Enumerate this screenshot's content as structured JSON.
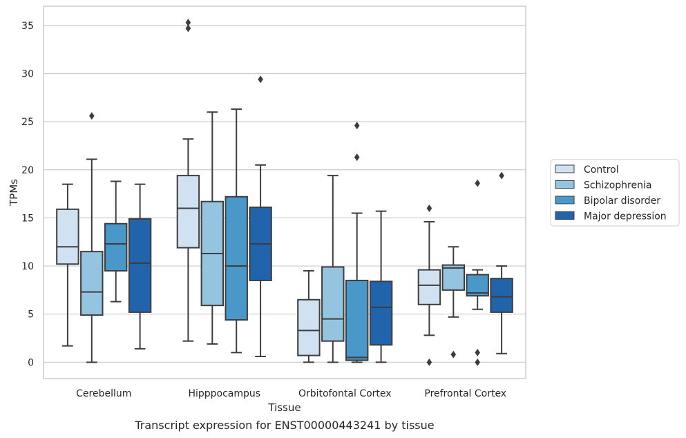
{
  "caption": "Transcript expression for ENST00000443241 by tissue",
  "colors": {
    "Control": "#d0e1f2",
    "Schizophrenia": "#94c4df",
    "Bipolar disorder": "#4a98c9",
    "Major depression": "#2164ab",
    "box_edge": "#3d3d3d",
    "grid": "#cccccc",
    "axes_edge": "#cccccc"
  },
  "chart_data": {
    "type": "box",
    "xlabel": "Tissue",
    "ylabel": "TPMs",
    "ylim": [
      -1.7,
      37.0
    ],
    "yticks": [
      0,
      5,
      10,
      15,
      20,
      25,
      30,
      35
    ],
    "grid": "horizontal",
    "legend_position": "right",
    "categories": [
      "Cerebellum",
      "Hipppocampus",
      "Orbitofontal Cortex",
      "Prefrontal Cortex"
    ],
    "series": [
      {
        "name": "Control",
        "boxes": [
          {
            "whisker_low": 1.7,
            "q1": 10.2,
            "median": 12.0,
            "q3": 15.9,
            "whisker_high": 18.5,
            "outliers": []
          },
          {
            "whisker_low": 2.2,
            "q1": 11.9,
            "median": 16.0,
            "q3": 19.4,
            "whisker_high": 23.2,
            "outliers": [
              34.7,
              35.3
            ]
          },
          {
            "whisker_low": 0.0,
            "q1": 0.7,
            "median": 3.3,
            "q3": 6.5,
            "whisker_high": 9.5,
            "outliers": []
          },
          {
            "whisker_low": 2.8,
            "q1": 6.0,
            "median": 8.0,
            "q3": 9.6,
            "whisker_high": 14.6,
            "outliers": [
              16.0,
              0.0
            ]
          }
        ]
      },
      {
        "name": "Schizophrenia",
        "boxes": [
          {
            "whisker_low": 0.0,
            "q1": 4.9,
            "median": 7.3,
            "q3": 11.5,
            "whisker_high": 21.1,
            "outliers": [
              25.6
            ]
          },
          {
            "whisker_low": 1.9,
            "q1": 5.9,
            "median": 11.3,
            "q3": 16.7,
            "whisker_high": 26.0,
            "outliers": []
          },
          {
            "whisker_low": 0.0,
            "q1": 2.2,
            "median": 4.5,
            "q3": 9.9,
            "whisker_high": 19.4,
            "outliers": []
          },
          {
            "whisker_low": 4.7,
            "q1": 7.5,
            "median": 9.8,
            "q3": 10.1,
            "whisker_high": 12.0,
            "outliers": [
              0.8
            ]
          }
        ]
      },
      {
        "name": "Bipolar disorder",
        "boxes": [
          {
            "whisker_low": 6.3,
            "q1": 9.5,
            "median": 12.3,
            "q3": 14.4,
            "whisker_high": 18.8,
            "outliers": []
          },
          {
            "whisker_low": 1.0,
            "q1": 4.4,
            "median": 10.0,
            "q3": 17.2,
            "whisker_high": 26.3,
            "outliers": []
          },
          {
            "whisker_low": 0.0,
            "q1": 0.2,
            "median": 0.5,
            "q3": 8.5,
            "whisker_high": 15.5,
            "outliers": [
              21.3,
              24.6
            ]
          },
          {
            "whisker_low": 5.5,
            "q1": 6.9,
            "median": 7.2,
            "q3": 9.1,
            "whisker_high": 9.6,
            "outliers": [
              18.6,
              1.0,
              0.0
            ]
          }
        ]
      },
      {
        "name": "Major depression",
        "boxes": [
          {
            "whisker_low": 1.4,
            "q1": 5.2,
            "median": 10.3,
            "q3": 14.9,
            "whisker_high": 18.5,
            "outliers": []
          },
          {
            "whisker_low": 0.6,
            "q1": 8.5,
            "median": 12.3,
            "q3": 16.1,
            "whisker_high": 20.5,
            "outliers": [
              29.4
            ]
          },
          {
            "whisker_low": 0.0,
            "q1": 1.8,
            "median": 5.7,
            "q3": 8.4,
            "whisker_high": 15.7,
            "outliers": []
          },
          {
            "whisker_low": 0.9,
            "q1": 5.2,
            "median": 6.8,
            "q3": 8.7,
            "whisker_high": 10.0,
            "outliers": [
              19.4
            ]
          }
        ]
      }
    ]
  }
}
